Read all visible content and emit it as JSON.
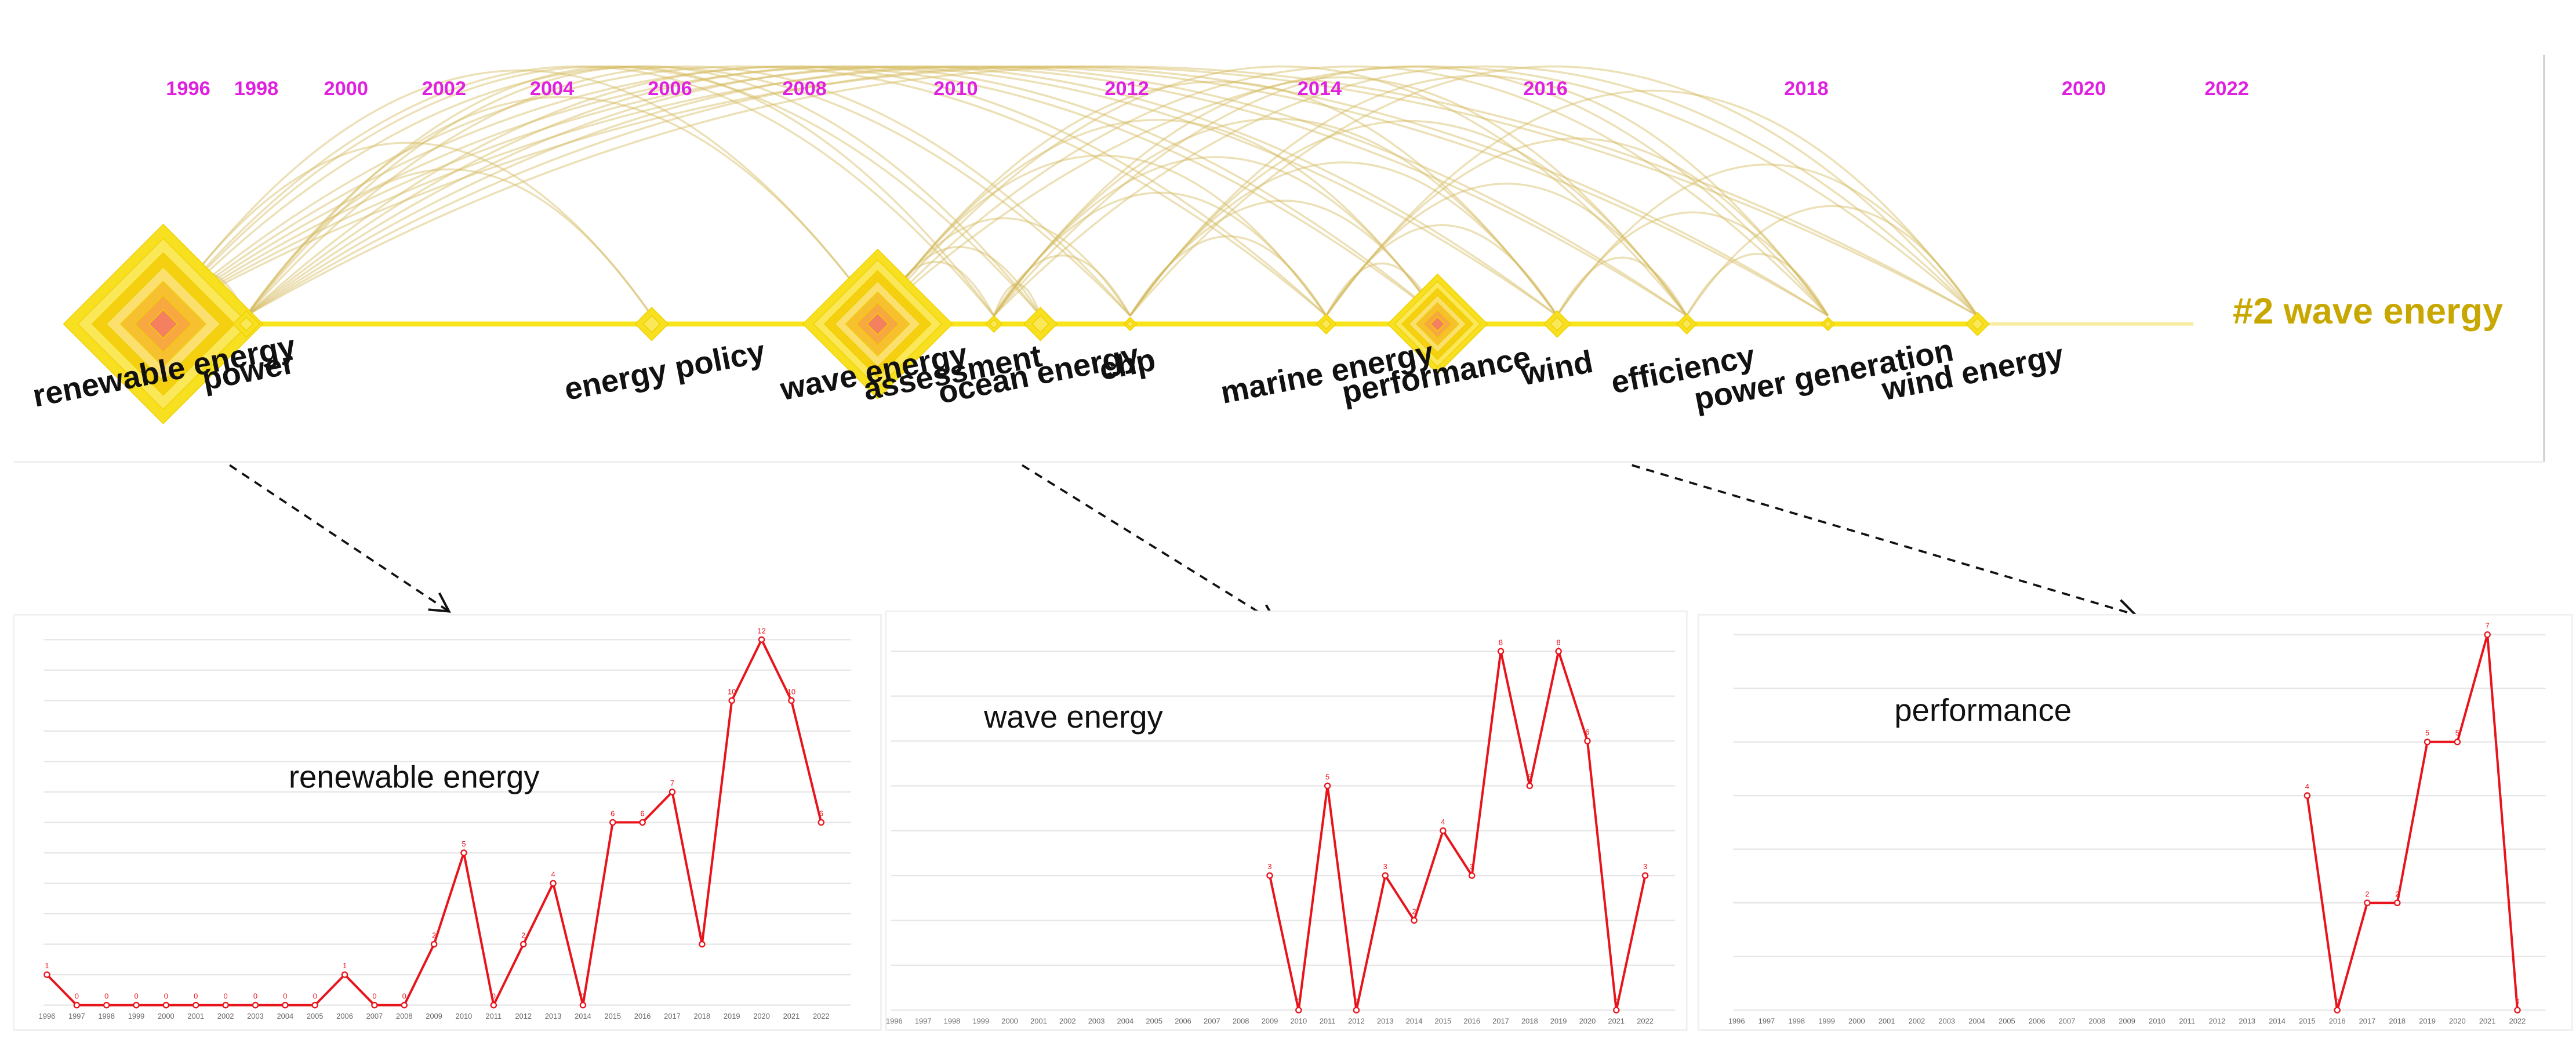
{
  "timeline": {
    "years": [
      "1996",
      "1998",
      "2000",
      "2002",
      "2004",
      "2006",
      "2008",
      "2010",
      "2012",
      "2014",
      "2016",
      "2018",
      "2020",
      "2022"
    ],
    "keywords": [
      "renewable energy",
      "power",
      "energy policy",
      "wave energy",
      "assessment",
      "ocean energy",
      "chp",
      "marine energy",
      "performance",
      "wind",
      "efficiency",
      "power generation",
      "wind energy"
    ],
    "cluster_label": "#2 wave energy"
  },
  "chart_data": [
    {
      "type": "line",
      "title": "renewable energy",
      "color": "#e8141c",
      "grid": true,
      "x": [
        1996,
        1997,
        1998,
        1999,
        2000,
        2001,
        2002,
        2003,
        2004,
        2005,
        2006,
        2007,
        2008,
        2009,
        2010,
        2011,
        2012,
        2013,
        2014,
        2015,
        2016,
        2017,
        2018,
        2019,
        2020,
        2021,
        2022
      ],
      "values": [
        1,
        0,
        0,
        0,
        0,
        0,
        0,
        0,
        0,
        0,
        1,
        0,
        0,
        2,
        5,
        0,
        2,
        4,
        0,
        6,
        6,
        7,
        2,
        10,
        12,
        10,
        6
      ],
      "xlim": [
        1996,
        2022
      ],
      "ylim": [
        0,
        12
      ],
      "yticks": [
        0,
        1,
        2,
        3,
        4,
        5,
        6,
        7,
        8,
        9,
        10,
        11,
        12
      ]
    },
    {
      "type": "line",
      "title": "wave energy",
      "color": "#e8141c",
      "grid": true,
      "x": [
        1996,
        1997,
        1998,
        1999,
        2000,
        2001,
        2002,
        2003,
        2004,
        2005,
        2006,
        2007,
        2008,
        2009,
        2010,
        2011,
        2012,
        2013,
        2014,
        2015,
        2016,
        2017,
        2018,
        2019,
        2020,
        2021,
        2022
      ],
      "values": [
        null,
        null,
        null,
        null,
        null,
        null,
        null,
        null,
        null,
        null,
        null,
        null,
        null,
        3,
        0,
        5,
        0,
        3,
        2,
        4,
        3,
        8,
        5,
        8,
        6,
        0,
        3
      ],
      "xlim": [
        1996,
        2022
      ],
      "ylim": [
        0,
        8
      ],
      "yticks": [
        0,
        1,
        2,
        3,
        4,
        5,
        6,
        7,
        8
      ]
    },
    {
      "type": "line",
      "title": "performance",
      "color": "#e8141c",
      "grid": true,
      "x": [
        1996,
        1997,
        1998,
        1999,
        2000,
        2001,
        2002,
        2003,
        2004,
        2005,
        2006,
        2007,
        2008,
        2009,
        2010,
        2011,
        2012,
        2013,
        2014,
        2015,
        2016,
        2017,
        2018,
        2019,
        2020,
        2021,
        2022
      ],
      "values": [
        null,
        null,
        null,
        null,
        null,
        null,
        null,
        null,
        null,
        null,
        null,
        null,
        null,
        null,
        null,
        null,
        null,
        null,
        null,
        4,
        0,
        2,
        2,
        5,
        5,
        7,
        0
      ],
      "xlim": [
        1996,
        2022
      ],
      "ylim": [
        0,
        7
      ],
      "yticks": [
        0,
        1,
        2,
        3,
        4,
        5,
        6,
        7
      ]
    }
  ]
}
